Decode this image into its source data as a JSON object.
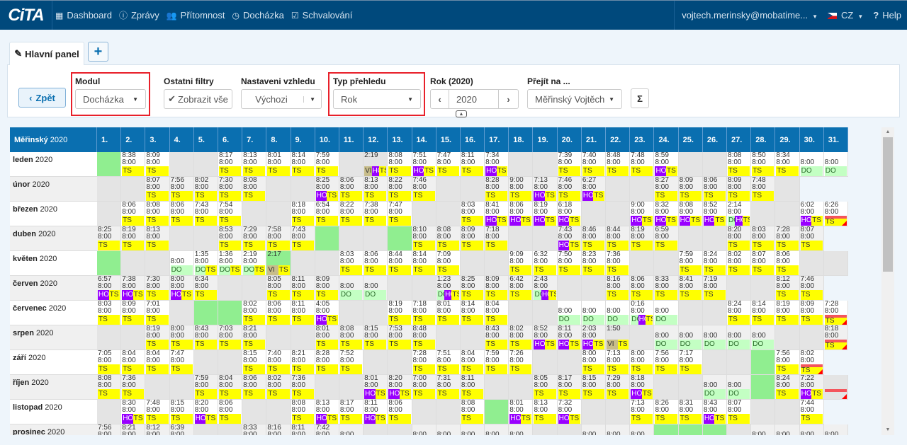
{
  "nav": {
    "logo": "CiTA",
    "items": [
      {
        "label": "Dashboard",
        "icon": "grid-icon"
      },
      {
        "label": "Zprávy",
        "icon": "info-icon"
      },
      {
        "label": "Přítomnost",
        "icon": "users-icon"
      },
      {
        "label": "Docházka",
        "icon": "clock-icon"
      },
      {
        "label": "Schvalování",
        "icon": "check-square-icon"
      }
    ],
    "user": "vojtech.merinsky@mobatime...",
    "lang": "CZ",
    "help": "Help"
  },
  "tabs": {
    "main": "Hlavní panel",
    "add": "+"
  },
  "filters": {
    "back": "Zpět",
    "modul_label": "Modul",
    "modul_value": "Docházka",
    "other_label": "Ostatni filtry",
    "other_button": "Zobrazit vše",
    "look_label": "Nastaveni vzhledu",
    "look_value": "Výchozi",
    "type_label": "Typ přehledu",
    "type_value": "Rok",
    "year_label": "Rok (2020)",
    "year_value": "2020",
    "goto_label": "Přejít na ...",
    "goto_value": "Měřinský Vojtěch",
    "sum": "Σ"
  },
  "colors": {
    "TS": "#ffff00",
    "HO": "#9900ff",
    "DO": "#c3ffc3",
    "VI": "#c8bd8a",
    "holiday": "#90ee90",
    "weekend": "#e4e4e4",
    "header": "#0a6fb0",
    "error": "#f4555c"
  },
  "table": {
    "corner_name": "Měřinský",
    "corner_year": "2020",
    "days": [
      "1.",
      "2.",
      "3.",
      "4.",
      "5.",
      "6.",
      "7.",
      "8.",
      "9.",
      "10.",
      "11.",
      "12.",
      "13.",
      "14.",
      "15.",
      "16.",
      "17.",
      "18.",
      "19.",
      "20.",
      "21.",
      "22.",
      "23.",
      "24.",
      "25.",
      "26.",
      "27.",
      "28.",
      "29.",
      "30.",
      "31."
    ],
    "months": [
      {
        "name": "leden",
        "year": "2020",
        "cells": [
          "h",
          "w|8:38|8:00|TS",
          "w|8:09|8:00|TS",
          "g",
          "g",
          "w|8:17|8:00|TS",
          "w|8:13|8:00|TS",
          "w|8:01|8:00|TS",
          "w|8:14|8:00|TS",
          "w|7:59|8:00|TS",
          "g",
          "g|2:19||VI HO TS",
          "w|8:08|8:00|TS",
          "w|7:51|8:00|HO TS",
          "w|7:47|8:00|TS",
          "w|8:11|8:00|TS",
          "w|7:34|8:00|HO TS",
          "g",
          "g",
          "w|7:39|8:00|TS",
          "w|7:40|8:00|TS",
          "w|8:48|8:00|TS",
          "w|7:48|8:00|TS",
          "w|8:59|8:00|HO TS",
          "g",
          "g",
          "w|8:08|8:00|TS",
          "w|8:50|8:00|TS",
          "w|8:34|8:00|TS",
          "w||8:00|DO",
          "w||8:00|DO"
        ]
      },
      {
        "name": "únor",
        "year": "2020",
        "cells": [
          "g",
          "g",
          "w|8:07|8:00|TS",
          "w|7:56|8:00|TS",
          "w|8:02|8:00|TS",
          "w|7:30|8:00|TS",
          "w|8:08|8:00|TS",
          "g",
          "g",
          "w|8:25|8:00|HO TS",
          "w|8:06|8:00|TS",
          "w|8:13|8:00|TS",
          "w|8:22|8:00|TS",
          "w|7:46|8:00|TS",
          "g",
          "g",
          "w|8:28|8:00|TS",
          "w|9:00|8:00|TS",
          "w|7:13|8:00|HO TS",
          "w|7:46|8:00|TS",
          "w|6:27|8:00|HO TS",
          "g",
          "g",
          "w|8:27|8:00|TS",
          "w|8:09|8:00|TS",
          "w|8:06|8:00|TS",
          "w|8:09|8:00|TS",
          "w|7:48|8:00|TS",
          "g",
          "n",
          "n"
        ]
      },
      {
        "name": "březen",
        "year": "2020",
        "cells": [
          "g",
          "w|8:06|8:00|TS",
          "w|8:08|8:00|TS",
          "w|8:06|8:00|TS",
          "w|7:43|8:00|TS",
          "w|7:54|8:00|TS",
          "g",
          "g",
          "w|8:18|8:00|TS",
          "w|6:54|8:00|TS",
          "w|8:22|8:00|TS",
          "w|7:38|8:00|TS",
          "w|7:47|8:00|TS",
          "g",
          "g",
          "w|8:03|8:00|TS",
          "w|8:41|8:00|HO TS",
          "w|8:06|8:00|HO TS",
          "w|8:19|8:00|HO TS",
          "w|6:18|8:00|HO TS",
          "g",
          "g",
          "w|9:00|8:00|HO TS",
          "w|8:32|8:00|HO TS",
          "w|8:08|8:00|HO TS",
          "w|8:52|8:00|HO TS",
          "w|2:14|8:00|DO HO TS",
          "g",
          "g",
          "w|6:02|8:00|HO TS",
          "w|6:26|8:00|R TS"
        ]
      },
      {
        "name": "duben",
        "year": "2020",
        "cells": [
          "w|8:25|8:00|TS",
          "w|8:19|8:00|TS",
          "w|8:13|8:00|TS",
          "g",
          "g",
          "w|8:53|8:00|TS",
          "w|7:29|8:00|TS",
          "w|7:58|8:00|TS",
          "w|7:43|8:00|TS",
          "h",
          "g",
          "g",
          "h",
          "w|8:10|8:00|TS",
          "w|8:08|8:00|TS",
          "w|8:09|8:00|TS",
          "w|7:18|8:00|TS",
          "g",
          "g",
          "w|7:43|8:00|HO TS",
          "w|8:46|8:00|TS",
          "w|8:44|8:00|TS",
          "w|8:19|8:00|TS",
          "w|6:59|8:00|TS",
          "g",
          "g",
          "w|8:20|8:00|TS",
          "w|8:03|8:00|TS",
          "w|7:28|8:00|TS",
          "w|8:07|8:00|TS",
          "n"
        ]
      },
      {
        "name": "květen",
        "year": "2020",
        "cells": [
          "h",
          "g",
          "g",
          "w||8:00|DO",
          "w|1:35|8:00|DO TS",
          "w|1:36|8:00|DO TS",
          "w|2:19|8:00|DO TS",
          "h|2:17||VI TS",
          "g",
          "g",
          "w|8:03|8:00|TS",
          "w|8:06|8:00|TS",
          "w|8:44|8:00|TS",
          "w|8:14|8:00|TS",
          "w|7:09|8:00|TS",
          "g",
          "g",
          "w|9:09|8:00|TS",
          "w|6:32|8:00|TS",
          "w|7:50|8:00|TS",
          "w|8:23|8:00|TS",
          "w|7:36|8:00|TS",
          "g",
          "g",
          "w|7:59|8:00|TS",
          "w|8:24|8:00|TS",
          "w|8:02|8:00|TS",
          "w|8:07|8:00|TS",
          "w|8:06|8:00|TS",
          "g",
          "g"
        ]
      },
      {
        "name": "červen",
        "year": "2020",
        "cells": [
          "w|6:57|8:00|HO TS",
          "w|7:38|8:00|HO TS",
          "w|7:30|8:00|TS",
          "w|8:00|8:00|HO TS",
          "w|6:34|8:00|TS",
          "g",
          "g",
          "w|8:05|8:00|TS",
          "w|8:11|8:00|TS",
          "w|8:09|8:00|TS",
          "w||8:00|DO",
          "w||8:00|DO",
          "g",
          "g",
          "w|1:23|8:00|DO HO TS",
          "w|8:25|8:00|TS",
          "w|8:09|8:00|TS",
          "w|6:42|8:00|TS",
          "w|2:43|8:00|DO HO TS",
          "g",
          "g",
          "w|8:16|8:00|TS",
          "w|8:06|8:00|TS",
          "w|8:33|8:00|TS",
          "w|8:41|8:00|TS",
          "w|7:19|8:00|TS",
          "g",
          "g",
          "w|8:12|8:00|TS",
          "w|7:46|8:00|TS",
          "n"
        ]
      },
      {
        "name": "červenec",
        "year": "2020",
        "cells": [
          "w|8:03|8:00|TS",
          "w|8:09|8:00|TS",
          "w|7:01|8:00|TS",
          "g",
          "h",
          "h",
          "w|8:02|8:00|TS",
          "w|8:06|8:00|TS",
          "w|8:11|8:00|TS",
          "w|4:05|8:00|HO TS",
          "g",
          "g",
          "w|8:19|8:00|TS",
          "w|7:18|8:00|TS",
          "w|8:01|8:00|TS",
          "w|8:14|8:00|TS",
          "w|8:04|8:00|TS",
          "g",
          "g",
          "w||8:00|DO",
          "w||8:00|DO",
          "w||8:00|DO",
          "w|0:16|8:00|DO HO TS",
          "w||8:00|DO",
          "g",
          "g",
          "w|8:24|8:00|TS",
          "w|8:14|8:00|TS",
          "w|8:19|8:00|TS",
          "w|8:09|8:00|TS",
          "w|7:28|8:00|R TS"
        ]
      },
      {
        "name": "srpen",
        "year": "2020",
        "cells": [
          "g",
          "g",
          "w|8:19|8:00|TS",
          "w|8:00|8:00|TS",
          "w|8:43|8:00|TS",
          "w|7:03|8:00|TS",
          "w|8:21|8:00|TS",
          "g",
          "g",
          "w|8:01|8:00|TS",
          "w|8:08|8:00|TS",
          "w|8:15|8:00|TS",
          "w|7:53|8:00|TS",
          "w|8:48|8:00|TS",
          "g",
          "g",
          "w|8:43|8:00|TS",
          "w|8:02|8:00|TS",
          "w|8:52|8:00|HO TS",
          "w|8:11|8:00|HO TS",
          "w|2:03|8:00|HO TS",
          "g|1:50||VI TS",
          "g",
          "w||8:00|DO",
          "w||8:00|DO",
          "w||8:00|DO",
          "w||8:00|DO",
          "w||8:00|DO",
          "g",
          "g",
          "w|8:18|8:00|R TS"
        ]
      },
      {
        "name": "září",
        "year": "2020",
        "cells": [
          "w|7:05|8:00|TS",
          "w|8:04|8:00|TS",
          "w|8:04|8:00|TS",
          "w|7:47|8:00|TS",
          "g",
          "g",
          "w|8:15|8:00|TS",
          "w|7:40|8:00|TS",
          "w|8:21|8:00|TS",
          "w|8:28|8:00|TS",
          "w|7:52|8:00|TS",
          "g",
          "g",
          "w|7:28|8:00|TS",
          "w|7:51|8:00|TS",
          "w|8:04|8:00|TS",
          "w|7:59|8:00|TS",
          "w|7:26|8:00|TS",
          "g",
          "g",
          "w|8:00|8:00|TS",
          "w|7:13|8:00|TS",
          "w|8:00|8:00|TS",
          "w|7:56|8:00|TS",
          "w|7:17|8:00|TS",
          "g",
          "g",
          "h",
          "w|7:56|8:00|TS",
          "w|8:02|8:00|R TS",
          "n"
        ]
      },
      {
        "name": "říjen",
        "year": "2020",
        "cells": [
          "w|8:08|8:00|TS",
          "w|7:36|8:00|TS",
          "g",
          "g",
          "w|7:59|8:00|TS",
          "w|8:04|8:00|TS",
          "w|8:06|8:00|TS",
          "w|8:02|8:00|TS",
          "w|7:36|8:00|TS",
          "g",
          "g",
          "w|8:01|8:00|HO TS",
          "w|8:20|8:00|HO TS",
          "w|7:00|8:00|TS",
          "w|7:31|8:00|TS",
          "w|8:11|8:00|TS",
          "g",
          "g",
          "w|8:05|8:00|TS",
          "w|8:17|8:00|TS",
          "w|8:15|8:00|TS",
          "w|7:29|8:00|TS",
          "w|8:18|8:00|HO TS",
          "g",
          "g",
          "w||8:00|DO",
          "w||8:00|DO",
          "h",
          "w|8:24|8:00|TS",
          "w|7:22|8:00|HO TS",
          "g|||R"
        ]
      },
      {
        "name": "listopad",
        "year": "2020",
        "cells": [
          "g",
          "w|8:30|8:00|HO TS",
          "w|7:48|8:00|TS",
          "w|8:15|8:00|TS",
          "w|8:20|8:00|HO TS",
          "w|8:06|8:00|TS",
          "g",
          "g",
          "w|8:08|8:00|TS",
          "w|8:13|8:00|HO TS",
          "w|8:17|8:00|TS",
          "w|8:11|8:00|HO TS",
          "w|8:06|8:00|TS",
          "g",
          "g",
          "w|8:08|8:00|TS",
          "h",
          "w|8:01|8:00|HO TS",
          "w|8:13|8:00|TS",
          "w|7:32|8:00|HO TS",
          "g",
          "g",
          "w|7:13|8:00|TS",
          "w|8:26|8:00|TS",
          "w|8:31|8:00|TS",
          "w|8:43|8:00|HO TS",
          "w|8:07|8:00|TS",
          "g",
          "g",
          "w|7:44|8:00|TS",
          "n"
        ]
      },
      {
        "name": "prosinec",
        "year": "2020",
        "cells": [
          "w|7:56|8:00|",
          "w|8:21|8:00|",
          "w|8:12|8:00|",
          "w|6:39|8:00|",
          "g",
          "g",
          "w|8:33|8:00|",
          "w|8:16|8:00|",
          "w|8:11|8:00|",
          "w|7:42|8:00|",
          "w||8:00|",
          "g",
          "g",
          "w||8:00|",
          "w||8:00|",
          "w||8:00|",
          "w||8:00|",
          "w||8:00|",
          "g",
          "g",
          "w||8:00|",
          "w||8:00|",
          "w||8:00|",
          "h",
          "h",
          "h",
          "g",
          "w||8:00|",
          "w||8:00|",
          "w||8:00|",
          "w||8:00|"
        ]
      }
    ]
  }
}
